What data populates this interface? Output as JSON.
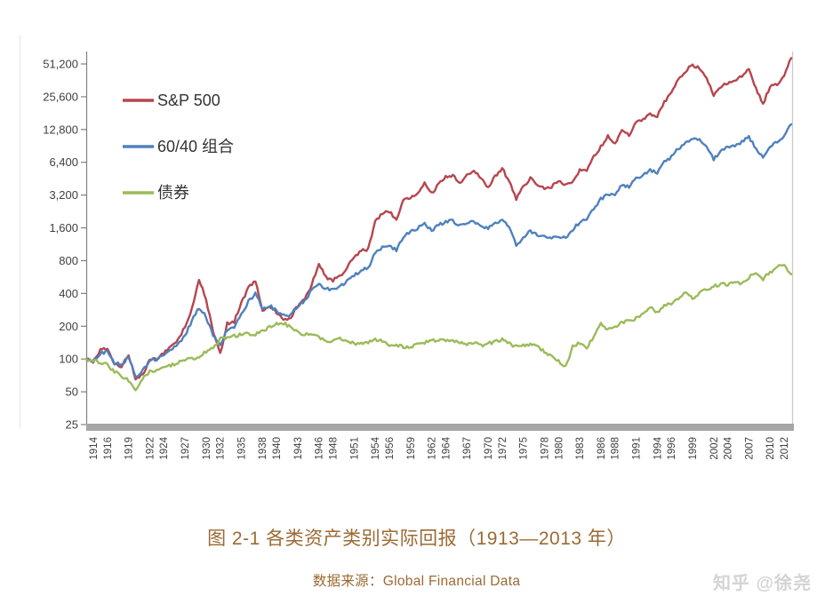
{
  "figure": {
    "title": "图 2-1 各类资产类别实际回报（1913—2013 年）",
    "source": "数据来源：Global Financial Data",
    "watermark": "知乎 @徐尧",
    "title_color": "#9b6a33",
    "watermark_color": "#d4d4d4"
  },
  "chart_data": {
    "type": "line",
    "title": "",
    "xlabel": "",
    "ylabel": "",
    "y_scale": "log2",
    "ylim": [
      25,
      51200
    ],
    "x_range": [
      1913,
      2013
    ],
    "interval": "annual",
    "grid": false,
    "legend_position": "top-left-inside",
    "axis_color": "#808080",
    "baseline_bar_color": "#a6a6a6",
    "right_border_color": "#c9c9c9",
    "label_color": "#404040",
    "y_ticks": [
      "51,200",
      "25,600",
      "12,800",
      "6,400",
      "3,200",
      "1,600",
      "800",
      "400",
      "200",
      "100",
      "50",
      "25"
    ],
    "x_tick_years": [
      1914,
      1916,
      1919,
      1922,
      1924,
      1927,
      1930,
      1932,
      1935,
      1938,
      1940,
      1943,
      1946,
      1948,
      1951,
      1954,
      1956,
      1959,
      1962,
      1964,
      1967,
      1970,
      1972,
      1975,
      1978,
      1980,
      1983,
      1986,
      1988,
      1991,
      1994,
      1996,
      1999,
      2002,
      2004,
      2007,
      2010,
      2012
    ],
    "series": [
      {
        "name": "S&P 500",
        "color": "#b6464e",
        "values": [
          100,
          92,
          120,
          128,
          90,
          85,
          110,
          65,
          72,
          98,
          100,
          115,
          132,
          150,
          195,
          290,
          550,
          350,
          180,
          110,
          210,
          220,
          330,
          450,
          530,
          280,
          310,
          270,
          230,
          240,
          310,
          360,
          480,
          760,
          560,
          530,
          570,
          700,
          850,
          1000,
          1020,
          1850,
          2200,
          2280,
          1900,
          2850,
          3100,
          3300,
          4100,
          3300,
          4000,
          4700,
          4900,
          4200,
          4900,
          5400,
          4600,
          3800,
          4700,
          5600,
          4300,
          2970,
          3800,
          4600,
          4000,
          3700,
          3800,
          4300,
          3900,
          4300,
          5400,
          5500,
          7200,
          9000,
          11000,
          9300,
          13000,
          11500,
          14800,
          16000,
          17500,
          17200,
          23000,
          28000,
          36500,
          44000,
          50000,
          47000,
          38000,
          26000,
          32000,
          34500,
          35500,
          40000,
          45500,
          30000,
          22000,
          32000,
          33000,
          40000,
          58000
        ]
      },
      {
        "name": "60/40 组合",
        "color": "#4f81bd",
        "values": [
          100,
          96,
          112,
          118,
          92,
          88,
          105,
          68,
          78,
          98,
          100,
          110,
          122,
          138,
          165,
          225,
          295,
          245,
          165,
          135,
          185,
          195,
          255,
          340,
          400,
          290,
          310,
          275,
          250,
          255,
          305,
          340,
          430,
          500,
          440,
          430,
          460,
          520,
          580,
          660,
          680,
          950,
          1050,
          1100,
          1000,
          1350,
          1450,
          1600,
          1750,
          1500,
          1700,
          1820,
          1850,
          1700,
          1800,
          1850,
          1650,
          1600,
          1750,
          1900,
          1600,
          1100,
          1300,
          1500,
          1400,
          1350,
          1320,
          1350,
          1300,
          1550,
          1800,
          1900,
          2400,
          2950,
          3200,
          3250,
          4000,
          3800,
          4600,
          4900,
          5400,
          5200,
          6400,
          7200,
          8600,
          9700,
          10300,
          10400,
          9000,
          6900,
          8100,
          8700,
          8900,
          9800,
          11000,
          8500,
          7000,
          9000,
          9700,
          11000,
          14300
        ]
      },
      {
        "name": "债券",
        "color": "#9bbb59",
        "values": [
          100,
          97,
          94,
          88,
          76,
          70,
          63,
          53,
          66,
          76,
          78,
          83,
          87,
          92,
          98,
          100,
          105,
          118,
          128,
          152,
          155,
          162,
          168,
          172,
          170,
          178,
          195,
          210,
          215,
          195,
          175,
          170,
          172,
          158,
          145,
          148,
          155,
          150,
          138,
          140,
          143,
          150,
          146,
          135,
          134,
          130,
          128,
          138,
          140,
          148,
          150,
          150,
          148,
          142,
          138,
          143,
          132,
          138,
          145,
          150,
          138,
          130,
          132,
          138,
          130,
          118,
          106,
          95,
          84,
          130,
          140,
          128,
          160,
          212,
          185,
          198,
          215,
          225,
          235,
          255,
          305,
          265,
          315,
          320,
          360,
          400,
          360,
          400,
          440,
          465,
          490,
          485,
          495,
          490,
          560,
          625,
          545,
          625,
          710,
          730,
          600
        ]
      }
    ]
  }
}
